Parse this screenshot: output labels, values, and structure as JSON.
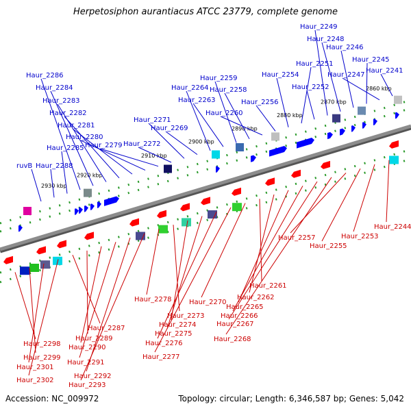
{
  "title": "Herpetosiphon aurantiacus ATCC 23779, complete genome",
  "footer": {
    "accession": "Accession: NC_009972",
    "topology": "Topology: circular; Length: 6,346,587 bp; Genes: 5,042"
  },
  "colors": {
    "forward_label": "#0000cc",
    "reverse_label": "#cc0000",
    "backbone": "#8c8c8c"
  },
  "kbp_ticks": [
    "2930 kbp",
    "2920 kbp",
    "2910 kbp",
    "2900 kbp",
    "2890 kbp",
    "2880 kbp",
    "2870 kbp",
    "2860 kbp"
  ],
  "forward_labels": [
    "ruvB",
    "Haur_2288",
    "Haur_2285",
    "Haur_2286",
    "Haur_2284",
    "Haur_2283",
    "Haur_2282",
    "Haur_2281",
    "Haur_2280",
    "Haur_2279",
    "Haur_2272",
    "Haur_2271",
    "Haur_2269",
    "Haur_2264",
    "Haur_2263",
    "Haur_2259",
    "Haur_2258",
    "Haur_2260",
    "Haur_2256",
    "Haur_2254",
    "Haur_2251",
    "Haur_2252",
    "Haur_2249",
    "Haur_2248",
    "Haur_2246",
    "Haur_2245",
    "Haur_2247",
    "Haur_2241"
  ],
  "reverse_labels": [
    "Haur_2298",
    "Haur_2299",
    "Haur_2301",
    "Haur_2302",
    "Haur_2287",
    "Haur_2289",
    "Haur_2290",
    "Haur_2291",
    "Haur_2292",
    "Haur_2293",
    "Haur_2278",
    "Haur_2273",
    "Haur_2274",
    "Haur_2275",
    "Haur_2276",
    "Haur_2277",
    "Haur_2270",
    "Haur_2261",
    "Haur_2262",
    "Haur_2265",
    "Haur_2266",
    "Haur_2267",
    "Haur_2268",
    "Haur_2257",
    "Haur_2255",
    "Haur_2253",
    "Haur_2244"
  ]
}
